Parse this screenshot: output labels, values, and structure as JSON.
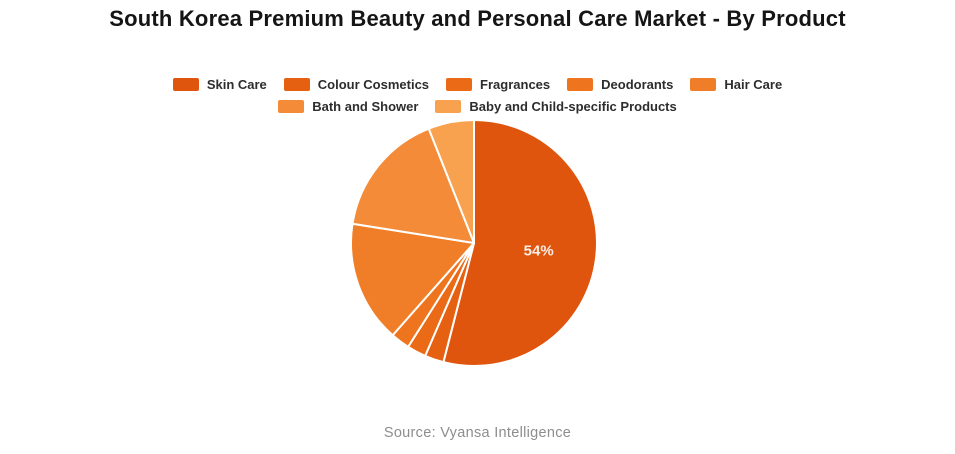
{
  "page": {
    "title": "South Korea Premium Beauty and Personal Care Market - By Product",
    "source": "Source: Vyansa Intelligence"
  },
  "chart_data": {
    "type": "pie",
    "title": "South Korea Premium Beauty and Personal Care Market - By Product",
    "legend_position": "top",
    "start_angle": "top",
    "direction": "clockwise",
    "total": 100,
    "data_label_color": "#F9EFE6",
    "slice_border_color": "#FFFFFF",
    "slices": [
      {
        "label": "Skin Care",
        "value": 54,
        "color": "#DF550D",
        "data_label": "54%"
      },
      {
        "label": "Colour Cosmetics",
        "value": 2.5,
        "color": "#E56010"
      },
      {
        "label": "Fragrances",
        "value": 2.5,
        "color": "#EA6A16"
      },
      {
        "label": "Deodorants",
        "value": 2.5,
        "color": "#EE751E"
      },
      {
        "label": "Hair Care",
        "value": 16,
        "color": "#F07E28"
      },
      {
        "label": "Bath and Shower",
        "value": 16.5,
        "color": "#F38B39"
      },
      {
        "label": "Baby and Child-specific Products",
        "value": 6,
        "color": "#F8A14E"
      }
    ]
  }
}
